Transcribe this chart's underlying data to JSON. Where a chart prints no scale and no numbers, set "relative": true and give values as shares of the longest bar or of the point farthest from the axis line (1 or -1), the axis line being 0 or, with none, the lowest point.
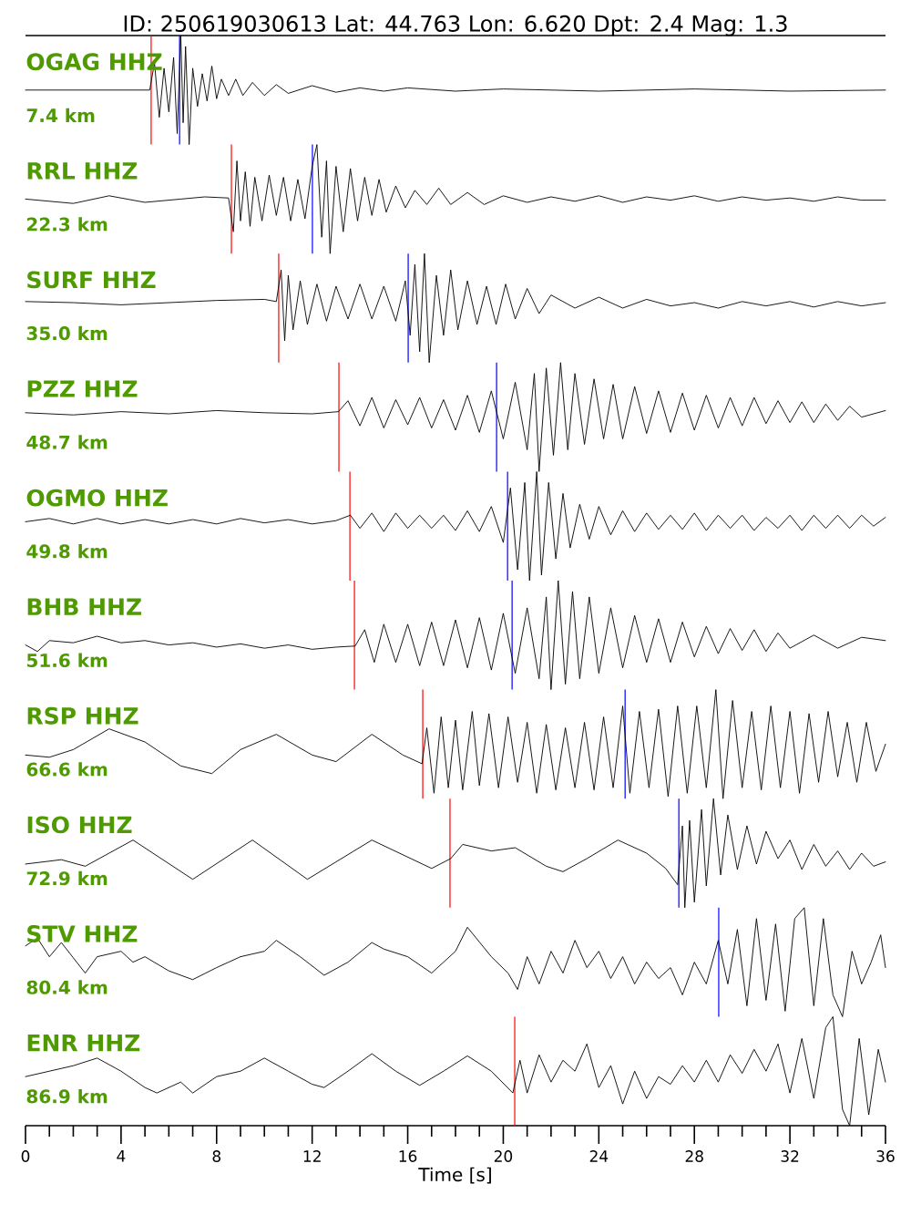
{
  "chart_data": [
    {
      "type": "other",
      "title": "ID: 250619030613 Lat:  44.763 Lon:   6.620 Dpt:     2.4 Mag:   1.3"
    },
    {
      "type": "line",
      "relative": true,
      "title": "OGAG HHZ",
      "annotations": [
        "7.4 km"
      ],
      "xlim": [
        0,
        36
      ],
      "tick_labels": false,
      "series": [
        {
          "color": "#000000",
          "x": [
            0,
            5.2,
            5.4,
            5.6,
            5.8,
            6.0,
            6.2,
            6.35,
            6.5,
            6.6,
            6.7,
            6.85,
            7.0,
            7.2,
            7.4,
            7.6,
            7.8,
            8.0,
            8.2,
            8.5,
            8.8,
            9.1,
            9.5,
            10,
            10.5,
            11,
            12,
            13,
            14,
            15,
            16,
            18,
            20,
            24,
            28,
            32,
            36
          ],
          "values": [
            0.5,
            0.5,
            0.75,
            0.25,
            0.7,
            0.3,
            0.8,
            0.1,
            1.0,
            0.2,
            0.9,
            0.0,
            0.7,
            0.35,
            0.65,
            0.4,
            0.72,
            0.42,
            0.6,
            0.45,
            0.6,
            0.45,
            0.57,
            0.45,
            0.55,
            0.47,
            0.54,
            0.48,
            0.52,
            0.49,
            0.52,
            0.49,
            0.51,
            0.49,
            0.51,
            0.49,
            0.5
          ]
        }
      ],
      "ref_lines": [
        {
          "axis": "x",
          "value": 5.26,
          "color": "#ff0000"
        },
        {
          "axis": "x",
          "value": 6.45,
          "color": "#0000ff"
        }
      ]
    },
    {
      "type": "line",
      "relative": true,
      "title": "RRL HHZ",
      "annotations": [
        "22.3 km"
      ],
      "xlim": [
        0,
        36
      ],
      "tick_labels": false,
      "series": [
        {
          "color": "#000000",
          "x": [
            0,
            1,
            2,
            3.5,
            5,
            6.5,
            7.5,
            8.5,
            8.7,
            8.85,
            9.0,
            9.2,
            9.4,
            9.6,
            9.9,
            10.2,
            10.5,
            10.8,
            11.1,
            11.4,
            11.7,
            12.0,
            12.2,
            12.4,
            12.6,
            12.75,
            13.0,
            13.3,
            13.6,
            13.9,
            14.2,
            14.5,
            14.8,
            15.1,
            15.5,
            15.9,
            16.3,
            16.8,
            17.3,
            17.8,
            18.5,
            19.2,
            20,
            21,
            22,
            23,
            24,
            25,
            26,
            27,
            28,
            29,
            30,
            31,
            32,
            33,
            34,
            35,
            36
          ],
          "values": [
            0.5,
            0.48,
            0.46,
            0.53,
            0.47,
            0.5,
            0.52,
            0.51,
            0.2,
            0.85,
            0.3,
            0.75,
            0.25,
            0.7,
            0.3,
            0.72,
            0.35,
            0.7,
            0.3,
            0.68,
            0.32,
            0.8,
            1.0,
            0.15,
            0.85,
            0.0,
            0.8,
            0.2,
            0.78,
            0.3,
            0.7,
            0.35,
            0.68,
            0.38,
            0.62,
            0.42,
            0.58,
            0.45,
            0.6,
            0.45,
            0.56,
            0.45,
            0.53,
            0.47,
            0.52,
            0.48,
            0.53,
            0.47,
            0.52,
            0.49,
            0.53,
            0.48,
            0.52,
            0.49,
            0.51,
            0.48,
            0.52,
            0.49,
            0.49
          ]
        }
      ],
      "ref_lines": [
        {
          "axis": "x",
          "value": 8.62,
          "color": "#ff0000"
        },
        {
          "axis": "x",
          "value": 12.01,
          "color": "#0000ff"
        }
      ]
    },
    {
      "type": "line",
      "relative": true,
      "title": "SURF HHZ",
      "annotations": [
        "35.0 km"
      ],
      "xlim": [
        0,
        36
      ],
      "tick_labels": false,
      "series": [
        {
          "color": "#000000",
          "x": [
            0,
            2,
            4,
            6,
            8,
            10,
            10.5,
            10.7,
            10.85,
            11.0,
            11.2,
            11.5,
            11.8,
            12.2,
            12.6,
            13.0,
            13.5,
            14.0,
            14.5,
            15.0,
            15.5,
            15.9,
            16.1,
            16.3,
            16.5,
            16.7,
            16.9,
            17.2,
            17.5,
            17.8,
            18.1,
            18.5,
            18.9,
            19.3,
            19.7,
            20.1,
            20.5,
            21.0,
            21.5,
            22,
            23,
            24,
            25,
            26,
            27,
            28,
            29,
            30,
            31,
            32,
            33,
            34,
            35,
            36
          ],
          "values": [
            0.56,
            0.55,
            0.53,
            0.55,
            0.57,
            0.58,
            0.56,
            0.85,
            0.2,
            0.8,
            0.3,
            0.75,
            0.35,
            0.72,
            0.38,
            0.7,
            0.4,
            0.72,
            0.4,
            0.7,
            0.38,
            0.75,
            0.25,
            0.9,
            0.1,
            1.0,
            0.0,
            0.8,
            0.25,
            0.85,
            0.3,
            0.75,
            0.35,
            0.7,
            0.35,
            0.72,
            0.4,
            0.68,
            0.45,
            0.62,
            0.5,
            0.6,
            0.5,
            0.58,
            0.52,
            0.55,
            0.5,
            0.56,
            0.52,
            0.56,
            0.51,
            0.56,
            0.52,
            0.55
          ]
        }
      ],
      "ref_lines": [
        {
          "axis": "x",
          "value": 10.6,
          "color": "#ff0000"
        },
        {
          "axis": "x",
          "value": 16.02,
          "color": "#0000ff"
        }
      ]
    },
    {
      "type": "line",
      "relative": true,
      "title": "PZZ HHZ",
      "annotations": [
        "48.7 km"
      ],
      "xlim": [
        0,
        36
      ],
      "tick_labels": false,
      "series": [
        {
          "color": "#000000",
          "x": [
            0,
            2,
            4,
            6,
            8,
            10,
            12,
            13.1,
            13.5,
            14,
            14.5,
            15,
            15.5,
            16,
            16.5,
            17,
            17.5,
            18,
            18.5,
            19,
            19.5,
            20,
            20.5,
            21.0,
            21.3,
            21.5,
            21.8,
            22.1,
            22.4,
            22.7,
            23.0,
            23.4,
            23.8,
            24.2,
            24.6,
            25.0,
            25.5,
            26,
            26.5,
            27,
            27.5,
            28,
            28.5,
            29,
            29.5,
            30,
            30.5,
            31,
            31.5,
            32,
            32.5,
            33,
            33.5,
            34,
            34.5,
            35,
            36
          ],
          "values": [
            0.54,
            0.52,
            0.55,
            0.53,
            0.56,
            0.54,
            0.53,
            0.55,
            0.65,
            0.42,
            0.68,
            0.4,
            0.66,
            0.43,
            0.68,
            0.4,
            0.66,
            0.38,
            0.7,
            0.36,
            0.74,
            0.3,
            0.82,
            0.2,
            0.9,
            0.0,
            0.95,
            0.15,
            1.0,
            0.2,
            0.9,
            0.25,
            0.85,
            0.3,
            0.8,
            0.3,
            0.78,
            0.35,
            0.74,
            0.36,
            0.72,
            0.38,
            0.7,
            0.4,
            0.68,
            0.42,
            0.68,
            0.44,
            0.65,
            0.45,
            0.64,
            0.45,
            0.62,
            0.47,
            0.6,
            0.5,
            0.56
          ]
        }
      ],
      "ref_lines": [
        {
          "axis": "x",
          "value": 13.12,
          "color": "#ff0000"
        },
        {
          "axis": "x",
          "value": 19.72,
          "color": "#0000ff"
        }
      ]
    },
    {
      "type": "line",
      "relative": true,
      "title": "OGMO HHZ",
      "annotations": [
        "49.8 km"
      ],
      "xlim": [
        0,
        36
      ],
      "tick_labels": false,
      "series": [
        {
          "color": "#000000",
          "x": [
            0,
            1,
            2,
            3,
            4,
            5,
            6,
            7,
            8,
            9,
            10,
            11,
            12,
            13,
            13.6,
            14,
            14.5,
            15,
            15.5,
            16,
            16.5,
            17,
            17.5,
            18,
            18.5,
            19,
            19.5,
            20,
            20.3,
            20.6,
            20.9,
            21.1,
            21.4,
            21.6,
            21.9,
            22.2,
            22.5,
            22.8,
            23.2,
            23.6,
            24,
            24.5,
            25,
            25.5,
            26,
            26.5,
            27,
            27.5,
            28,
            28.5,
            29,
            29.5,
            30,
            30.5,
            31,
            31.5,
            32,
            32.5,
            33,
            33.5,
            34,
            34.5,
            35,
            35.5,
            36
          ],
          "values": [
            0.54,
            0.57,
            0.52,
            0.57,
            0.52,
            0.56,
            0.52,
            0.56,
            0.52,
            0.57,
            0.53,
            0.56,
            0.52,
            0.55,
            0.6,
            0.48,
            0.62,
            0.45,
            0.62,
            0.48,
            0.6,
            0.48,
            0.6,
            0.46,
            0.64,
            0.45,
            0.68,
            0.35,
            0.85,
            0.1,
            0.9,
            0.0,
            1.0,
            0.05,
            0.9,
            0.2,
            0.8,
            0.3,
            0.7,
            0.38,
            0.68,
            0.42,
            0.64,
            0.45,
            0.62,
            0.47,
            0.6,
            0.47,
            0.62,
            0.46,
            0.6,
            0.48,
            0.6,
            0.46,
            0.58,
            0.48,
            0.6,
            0.46,
            0.6,
            0.48,
            0.6,
            0.48,
            0.6,
            0.5,
            0.58
          ]
        }
      ],
      "ref_lines": [
        {
          "axis": "x",
          "value": 13.58,
          "color": "#ff0000"
        },
        {
          "axis": "x",
          "value": 20.18,
          "color": "#0000ff"
        }
      ]
    },
    {
      "type": "line",
      "relative": true,
      "title": "BHB HHZ",
      "annotations": [
        "51.6 km"
      ],
      "xlim": [
        0,
        36
      ],
      "tick_labels": false,
      "series": [
        {
          "color": "#000000",
          "x": [
            0,
            0.5,
            1,
            2,
            3,
            4,
            5,
            6,
            7,
            8,
            9,
            10,
            11,
            12,
            13,
            13.8,
            14.2,
            14.6,
            15,
            15.5,
            16,
            16.5,
            17,
            17.5,
            18,
            18.5,
            19,
            19.5,
            20,
            20.5,
            21,
            21.5,
            21.8,
            22.0,
            22.3,
            22.6,
            22.9,
            23.2,
            23.6,
            24,
            24.5,
            25,
            25.5,
            26,
            26.5,
            27,
            27.5,
            28,
            28.5,
            29,
            29.5,
            30,
            30.5,
            31,
            31.5,
            32,
            33,
            34,
            35,
            36
          ],
          "values": [
            0.41,
            0.35,
            0.45,
            0.43,
            0.49,
            0.43,
            0.45,
            0.41,
            0.43,
            0.39,
            0.42,
            0.38,
            0.41,
            0.37,
            0.39,
            0.4,
            0.55,
            0.25,
            0.6,
            0.25,
            0.6,
            0.22,
            0.62,
            0.22,
            0.64,
            0.2,
            0.66,
            0.18,
            0.7,
            0.15,
            0.75,
            0.1,
            0.85,
            0.0,
            1.0,
            0.05,
            0.9,
            0.1,
            0.85,
            0.15,
            0.75,
            0.2,
            0.68,
            0.25,
            0.65,
            0.25,
            0.62,
            0.3,
            0.58,
            0.33,
            0.56,
            0.36,
            0.55,
            0.35,
            0.52,
            0.38,
            0.5,
            0.38,
            0.48,
            0.45
          ]
        }
      ],
      "ref_lines": [
        {
          "axis": "x",
          "value": 13.77,
          "color": "#ff0000"
        },
        {
          "axis": "x",
          "value": 20.37,
          "color": "#0000ff"
        }
      ]
    },
    {
      "type": "line",
      "relative": true,
      "title": "RSP HHZ",
      "annotations": [
        "66.6 km"
      ],
      "xlim": [
        0,
        36
      ],
      "tick_labels": false,
      "series": [
        {
          "color": "#000000",
          "x": [
            0,
            1,
            2,
            3.5,
            5,
            6.5,
            7.8,
            9,
            10.5,
            12,
            13,
            14.5,
            15.8,
            16.6,
            16.8,
            17.1,
            17.4,
            17.7,
            18,
            18.3,
            18.7,
            19,
            19.4,
            19.8,
            20.2,
            20.6,
            21,
            21.4,
            21.8,
            22.2,
            22.6,
            23,
            23.4,
            23.8,
            24.2,
            24.6,
            25,
            25.3,
            25.7,
            26.1,
            26.5,
            26.9,
            27.3,
            27.7,
            28.1,
            28.5,
            28.9,
            29.2,
            29.6,
            30,
            30.4,
            30.8,
            31.2,
            31.6,
            32,
            32.4,
            32.8,
            33.2,
            33.6,
            34,
            34.4,
            34.8,
            35.2,
            35.6,
            36
          ],
          "values": [
            0.4,
            0.38,
            0.45,
            0.64,
            0.52,
            0.3,
            0.23,
            0.45,
            0.59,
            0.4,
            0.34,
            0.59,
            0.4,
            0.32,
            0.65,
            0.05,
            0.75,
            0.1,
            0.72,
            0.08,
            0.8,
            0.12,
            0.78,
            0.1,
            0.75,
            0.15,
            0.7,
            0.05,
            0.68,
            0.08,
            0.65,
            0.1,
            0.7,
            0.08,
            0.75,
            0.1,
            0.85,
            0.05,
            0.8,
            0.1,
            0.82,
            0.02,
            0.85,
            0.05,
            0.85,
            0.1,
            1.0,
            0.0,
            0.9,
            0.1,
            0.8,
            0.08,
            0.85,
            0.1,
            0.8,
            0.05,
            0.78,
            0.15,
            0.8,
            0.2,
            0.7,
            0.15,
            0.7,
            0.25,
            0.5
          ]
        }
      ],
      "ref_lines": [
        {
          "axis": "x",
          "value": 16.63,
          "color": "#ff0000"
        },
        {
          "axis": "x",
          "value": 25.1,
          "color": "#0000ff"
        }
      ]
    },
    {
      "type": "line",
      "relative": true,
      "title": "ISO HHZ",
      "annotations": [
        "72.9 km"
      ],
      "xlim": [
        0,
        36
      ],
      "tick_labels": false,
      "series": [
        {
          "color": "#000000",
          "x": [
            0,
            1.5,
            2.5,
            4.5,
            7,
            9.5,
            11.8,
            14.5,
            17,
            17.8,
            18.3,
            19.5,
            20.5,
            21.8,
            22.5,
            23.5,
            24.8,
            26,
            26.8,
            27.3,
            27.5,
            27.6,
            27.8,
            28.0,
            28.3,
            28.5,
            28.8,
            29.1,
            29.4,
            29.8,
            30.2,
            30.6,
            31,
            31.5,
            32,
            32.5,
            33,
            33.5,
            34,
            34.5,
            35,
            35.5,
            36
          ],
          "values": [
            0.4,
            0.44,
            0.38,
            0.62,
            0.26,
            0.62,
            0.26,
            0.62,
            0.36,
            0.45,
            0.58,
            0.52,
            0.55,
            0.38,
            0.33,
            0.45,
            0.62,
            0.5,
            0.36,
            0.21,
            0.75,
            0.0,
            0.8,
            0.05,
            0.9,
            0.2,
            1.0,
            0.3,
            0.85,
            0.35,
            0.75,
            0.4,
            0.7,
            0.45,
            0.62,
            0.35,
            0.58,
            0.38,
            0.52,
            0.35,
            0.5,
            0.38,
            0.42
          ]
        }
      ],
      "ref_lines": [
        {
          "axis": "x",
          "value": 17.77,
          "color": "#ff0000"
        },
        {
          "axis": "x",
          "value": 27.35,
          "color": "#0000ff"
        }
      ]
    },
    {
      "type": "line",
      "relative": true,
      "title": "STV HHZ",
      "annotations": [
        "80.4 km"
      ],
      "xlim": [
        0,
        36
      ],
      "tick_labels": false,
      "series": [
        {
          "color": "#000000",
          "x": [
            0,
            0.5,
            1,
            1.5,
            2.5,
            3,
            4,
            4.5,
            5,
            6,
            7,
            8,
            9,
            10,
            10.5,
            11.5,
            12.5,
            13.5,
            14.5,
            15,
            16,
            17,
            18,
            18.5,
            19.5,
            20.2,
            20.6,
            21,
            21.5,
            22,
            22.5,
            23,
            23.5,
            24,
            24.5,
            25,
            25.5,
            26,
            26.5,
            27,
            27.5,
            28,
            28.5,
            29,
            29.4,
            29.8,
            30.2,
            30.6,
            31,
            31.4,
            31.8,
            32.2,
            32.6,
            33,
            33.4,
            33.8,
            34.2,
            34.6,
            35,
            35.4,
            35.8,
            36
          ],
          "values": [
            0.65,
            0.72,
            0.55,
            0.68,
            0.4,
            0.55,
            0.6,
            0.5,
            0.55,
            0.42,
            0.34,
            0.45,
            0.55,
            0.6,
            0.7,
            0.55,
            0.38,
            0.5,
            0.68,
            0.62,
            0.55,
            0.4,
            0.6,
            0.82,
            0.55,
            0.4,
            0.25,
            0.55,
            0.3,
            0.6,
            0.4,
            0.7,
            0.45,
            0.6,
            0.35,
            0.55,
            0.3,
            0.5,
            0.35,
            0.45,
            0.2,
            0.5,
            0.3,
            0.7,
            0.3,
            0.8,
            0.1,
            0.9,
            0.15,
            0.85,
            0.05,
            0.9,
            1.0,
            0.1,
            0.9,
            0.2,
            0.0,
            0.6,
            0.3,
            0.5,
            0.75,
            0.45
          ]
        }
      ],
      "ref_lines": [
        {
          "axis": "x",
          "value": 29.02,
          "color": "#0000ff"
        }
      ]
    },
    {
      "type": "line",
      "relative": true,
      "title": "ENR HHZ",
      "annotations": [
        "86.9 km"
      ],
      "xlim": [
        0,
        36
      ],
      "tick_labels": "x",
      "xlabel": "Time [s]",
      "xticks": [
        0,
        {
          "value": 1,
          "label": null
        },
        {
          "value": 2,
          "label": null
        },
        {
          "value": 3,
          "label": null
        },
        4,
        {
          "value": 5,
          "label": null
        },
        {
          "value": 6,
          "label": null
        },
        {
          "value": 7,
          "label": null
        },
        8,
        {
          "value": 9,
          "label": null
        },
        {
          "value": 10,
          "label": null
        },
        {
          "value": 11,
          "label": null
        },
        12,
        {
          "value": 13,
          "label": null
        },
        {
          "value": 14,
          "label": null
        },
        {
          "value": 15,
          "label": null
        },
        16,
        {
          "value": 17,
          "label": null
        },
        {
          "value": 18,
          "label": null
        },
        {
          "value": 19,
          "label": null
        },
        20,
        {
          "value": 21,
          "label": null
        },
        {
          "value": 22,
          "label": null
        },
        {
          "value": 23,
          "label": null
        },
        24,
        {
          "value": 25,
          "label": null
        },
        {
          "value": 26,
          "label": null
        },
        {
          "value": 27,
          "label": null
        },
        28,
        {
          "value": 29,
          "label": null
        },
        {
          "value": 30,
          "label": null
        },
        {
          "value": 31,
          "label": null
        },
        32,
        {
          "value": 33,
          "label": null
        },
        {
          "value": 34,
          "label": null
        },
        {
          "value": 35,
          "label": null
        },
        36
      ],
      "series": [
        {
          "color": "#000000",
          "x": [
            0,
            1,
            2,
            3,
            4,
            5,
            5.5,
            6.5,
            7,
            8,
            9,
            10,
            11,
            12,
            12.5,
            13.5,
            14.5,
            15.5,
            16.5,
            17.5,
            18.5,
            19.5,
            20.4,
            20.7,
            21,
            21.5,
            22,
            22.5,
            23,
            23.5,
            24,
            24.5,
            25,
            25.5,
            26,
            26.5,
            27,
            27.5,
            28,
            28.5,
            29,
            29.5,
            30,
            30.5,
            31,
            31.5,
            32,
            32.5,
            33,
            33.5,
            33.8,
            34.2,
            34.5,
            34.9,
            35.3,
            35.7,
            36
          ],
          "values": [
            0.45,
            0.5,
            0.55,
            0.62,
            0.5,
            0.35,
            0.3,
            0.4,
            0.3,
            0.45,
            0.5,
            0.62,
            0.5,
            0.38,
            0.35,
            0.5,
            0.66,
            0.5,
            0.37,
            0.5,
            0.64,
            0.5,
            0.3,
            0.6,
            0.3,
            0.65,
            0.4,
            0.6,
            0.5,
            0.75,
            0.35,
            0.55,
            0.2,
            0.5,
            0.25,
            0.45,
            0.38,
            0.55,
            0.4,
            0.6,
            0.4,
            0.65,
            0.48,
            0.7,
            0.5,
            0.75,
            0.3,
            0.8,
            0.25,
            0.9,
            1.0,
            0.15,
            0.0,
            0.8,
            0.1,
            0.7,
            0.4
          ]
        }
      ],
      "ref_lines": [
        {
          "axis": "x",
          "value": 20.48,
          "color": "#ff0000"
        }
      ]
    }
  ]
}
